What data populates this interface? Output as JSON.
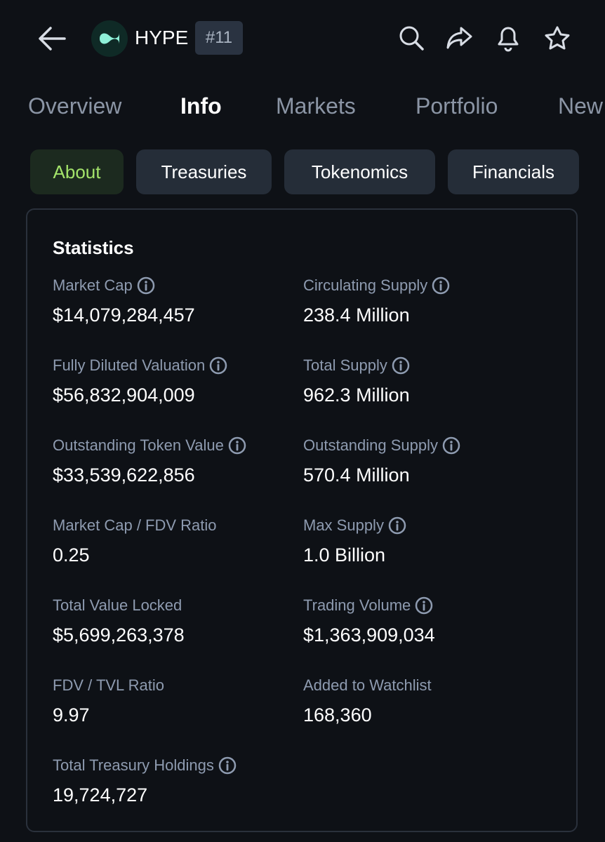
{
  "header": {
    "title": "HYPE",
    "rank": "#11"
  },
  "tabs": [
    "Overview",
    "Info",
    "Markets",
    "Portfolio",
    "New"
  ],
  "subtabs": [
    "About",
    "Treasuries",
    "Tokenomics",
    "Financials"
  ],
  "statistics": {
    "title": "Statistics",
    "left": [
      {
        "label": "Market Cap",
        "value": "$14,079,284,457"
      },
      {
        "label": "Fully Diluted Valuation",
        "value": "$56,832,904,009"
      },
      {
        "label": "Outstanding Token Value",
        "value": "$33,539,622,856"
      },
      {
        "label": "Market Cap / FDV Ratio",
        "value": "0.25"
      },
      {
        "label": "Total Value Locked",
        "value": "$5,699,263,378"
      },
      {
        "label": "FDV / TVL Ratio",
        "value": "9.97"
      },
      {
        "label": "Total Treasury Holdings",
        "value": "19,724,727"
      }
    ],
    "right": [
      {
        "label": "Circulating Supply",
        "value": "238.4 Million"
      },
      {
        "label": "Total Supply",
        "value": "962.3 Million"
      },
      {
        "label": "Outstanding Supply",
        "value": "570.4 Million"
      },
      {
        "label": "Max Supply",
        "value": "1.0 Billion"
      },
      {
        "label": "Trading Volume",
        "value": "$1,363,909,034"
      },
      {
        "label": "Added to Watchlist",
        "value": "168,360"
      }
    ]
  }
}
